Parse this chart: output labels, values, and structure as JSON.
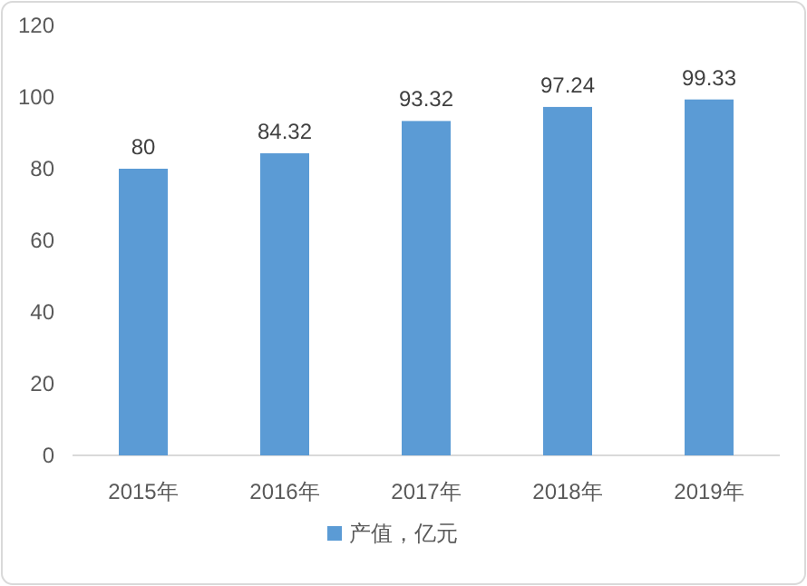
{
  "chart_data": {
    "type": "bar",
    "categories": [
      "2015年",
      "2016年",
      "2017年",
      "2018年",
      "2019年"
    ],
    "series": [
      {
        "name": "产值，亿元",
        "color": "#5b9bd5",
        "values": [
          80,
          84.32,
          93.32,
          97.24,
          99.33
        ]
      }
    ],
    "ylim": [
      0,
      120
    ],
    "yticks": [
      0,
      20,
      40,
      60,
      80,
      100,
      120
    ],
    "data_labels": true,
    "legend": "bottom"
  }
}
